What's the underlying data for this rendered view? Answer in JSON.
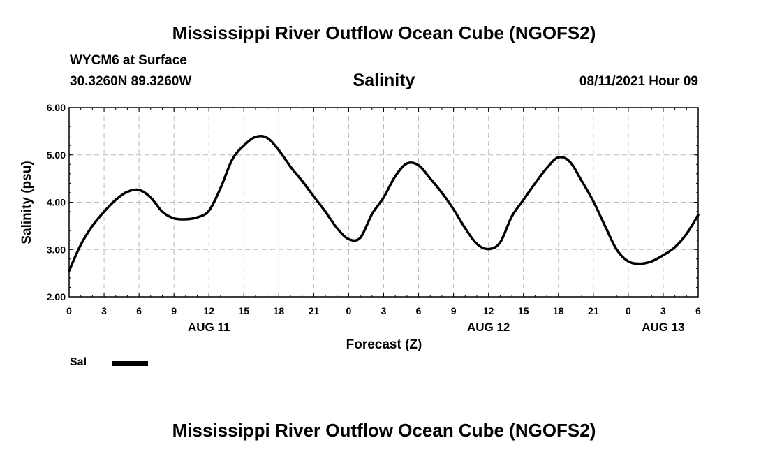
{
  "header": {
    "title": "Mississippi River Outflow Ocean Cube (NGOFS2)",
    "station": "WYCM6 at Surface",
    "coords": "30.3260N  89.3260W",
    "variable": "Salinity",
    "datetime": "08/11/2021 Hour 09"
  },
  "footer": {
    "title": "Mississippi River Outflow Ocean Cube (NGOFS2)"
  },
  "legend": {
    "label": "Sal"
  },
  "chart_data": {
    "type": "line",
    "title": "Salinity",
    "xlabel": "Forecast (Z)",
    "ylabel": "Salinity (psu)",
    "xlim": [
      0,
      54
    ],
    "ylim": [
      2.0,
      6.0
    ],
    "grid": true,
    "yticks": [
      2.0,
      3.0,
      4.0,
      5.0,
      6.0
    ],
    "ytick_labels": [
      "2.00",
      "3.00",
      "4.00",
      "5.00",
      "6.00"
    ],
    "xticks": [
      0,
      3,
      6,
      9,
      12,
      15,
      18,
      21,
      24,
      27,
      30,
      33,
      36,
      39,
      42,
      45,
      48,
      51,
      54
    ],
    "xtick_labels": [
      "0",
      "3",
      "6",
      "9",
      "12",
      "15",
      "18",
      "21",
      "0",
      "3",
      "6",
      "9",
      "12",
      "15",
      "18",
      "21",
      "0",
      "3",
      "6"
    ],
    "day_labels": [
      {
        "x": 12,
        "label": "AUG 11"
      },
      {
        "x": 36,
        "label": "AUG 12"
      },
      {
        "x": 51,
        "label": "AUG 13"
      }
    ],
    "series": [
      {
        "name": "Sal",
        "color": "#000000",
        "x": [
          0,
          1,
          2,
          3,
          4,
          5,
          6,
          7,
          8,
          9,
          10,
          11,
          12,
          13,
          14,
          15,
          16,
          17,
          18,
          19,
          20,
          21,
          22,
          23,
          24,
          25,
          26,
          27,
          28,
          29,
          30,
          31,
          32,
          33,
          34,
          35,
          36,
          37,
          38,
          39,
          40,
          41,
          42,
          43,
          44,
          45,
          46,
          47,
          48,
          49,
          50,
          51,
          52,
          53,
          54
        ],
        "values": [
          2.55,
          3.1,
          3.5,
          3.8,
          4.05,
          4.22,
          4.26,
          4.1,
          3.8,
          3.66,
          3.64,
          3.68,
          3.82,
          4.3,
          4.9,
          5.2,
          5.38,
          5.36,
          5.1,
          4.75,
          4.45,
          4.12,
          3.8,
          3.45,
          3.22,
          3.25,
          3.75,
          4.1,
          4.55,
          4.82,
          4.78,
          4.5,
          4.2,
          3.85,
          3.45,
          3.12,
          3.01,
          3.15,
          3.7,
          4.05,
          4.4,
          4.72,
          4.95,
          4.85,
          4.45,
          4.02,
          3.5,
          3.0,
          2.75,
          2.7,
          2.75,
          2.88,
          3.05,
          3.33,
          3.73
        ]
      }
    ]
  }
}
